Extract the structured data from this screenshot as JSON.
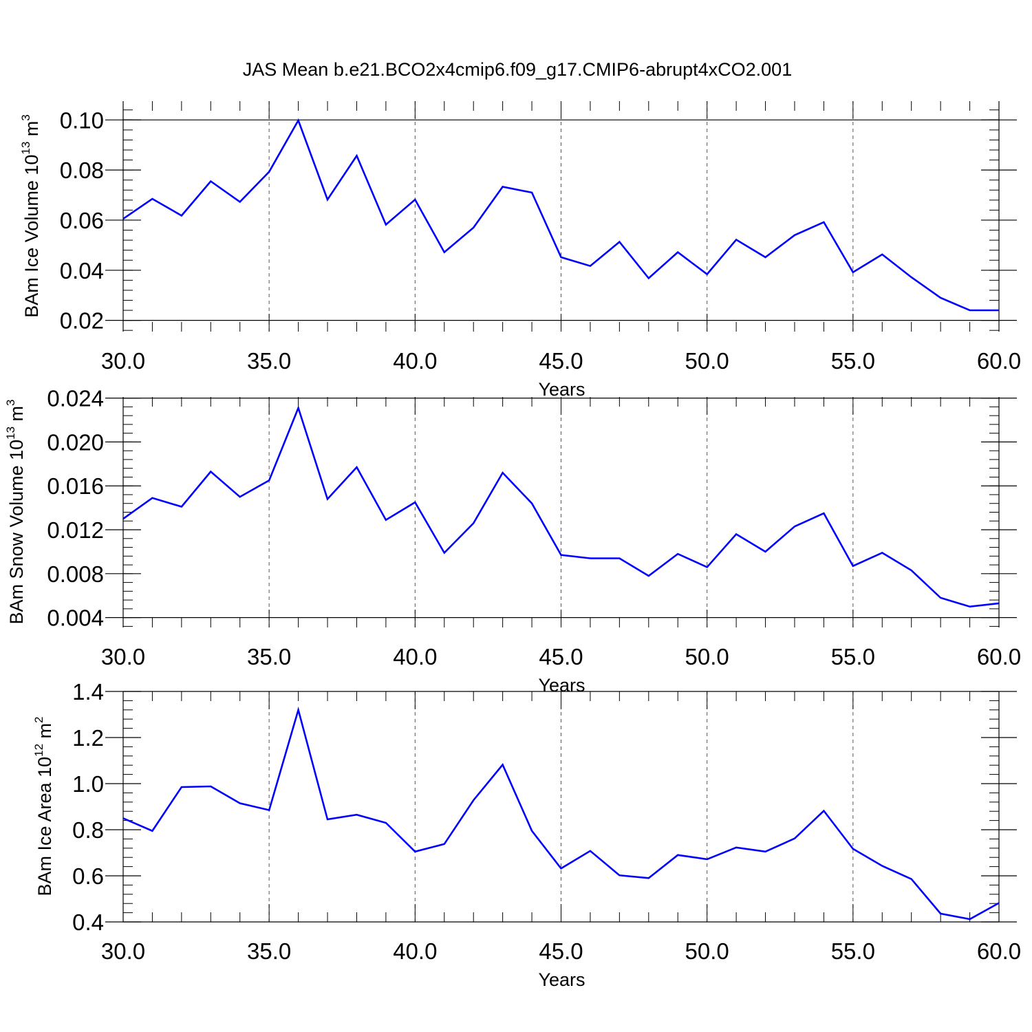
{
  "title": "JAS Mean b.e21.BCO2x4cmip6.f09_g17.CMIP6-abrupt4xCO2.001",
  "chart_data": [
    {
      "type": "line",
      "name": "ice-volume",
      "ylabel_main": "BAm Ice Volume 10",
      "ylabel_exp": "13",
      "ylabel_unit": " m",
      "ylabel_unit_exp": "3",
      "xlabel": "Years",
      "xlim": [
        30,
        60
      ],
      "ylim": [
        0.0155,
        0.1075
      ],
      "x_ticks": [
        30,
        35,
        40,
        45,
        50,
        55,
        60
      ],
      "x_tick_labels": [
        "30.0",
        "35.0",
        "40.0",
        "45.0",
        "50.0",
        "55.0",
        "60.0"
      ],
      "y_ticks": [
        0.02,
        0.04,
        0.06,
        0.08,
        0.1
      ],
      "y_tick_labels": [
        "0.02",
        "0.04",
        "0.06",
        "0.08",
        "0.10"
      ],
      "y_minor_step": 0.004,
      "x": [
        30,
        31,
        32,
        33,
        34,
        35,
        36,
        37,
        38,
        39,
        40,
        41,
        42,
        43,
        44,
        45,
        46,
        47,
        48,
        49,
        50,
        51,
        52,
        53,
        54,
        55,
        56,
        57,
        58,
        59,
        60
      ],
      "series": [
        {
          "name": "BAm Ice Volume",
          "color": "#0000ff",
          "values": [
            0.0605,
            0.0685,
            0.0618,
            0.0755,
            0.0673,
            0.0793,
            0.0998,
            0.0682,
            0.0857,
            0.0582,
            0.0682,
            0.0472,
            0.057,
            0.0733,
            0.071,
            0.0452,
            0.0417,
            0.0513,
            0.0368,
            0.0472,
            0.0384,
            0.0522,
            0.0452,
            0.054,
            0.0592,
            0.0392,
            0.0463,
            0.0372,
            0.029,
            0.024,
            0.024
          ]
        }
      ]
    },
    {
      "type": "line",
      "name": "snow-volume",
      "ylabel_main": "BAm Snow Volume 10",
      "ylabel_exp": "13",
      "ylabel_unit": " m",
      "ylabel_unit_exp": "3",
      "xlabel": "Years",
      "xlim": [
        30,
        60
      ],
      "ylim": [
        0.0031,
        0.0241
      ],
      "x_ticks": [
        30,
        35,
        40,
        45,
        50,
        55,
        60
      ],
      "x_tick_labels": [
        "30.0",
        "35.0",
        "40.0",
        "45.0",
        "50.0",
        "55.0",
        "60.0"
      ],
      "y_ticks": [
        0.004,
        0.008,
        0.012,
        0.016,
        0.02,
        0.024
      ],
      "y_tick_labels": [
        "0.004",
        "0.008",
        "0.012",
        "0.016",
        "0.020",
        "0.024"
      ],
      "y_minor_step": 0.0008,
      "x": [
        30,
        31,
        32,
        33,
        34,
        35,
        36,
        37,
        38,
        39,
        40,
        41,
        42,
        43,
        44,
        45,
        46,
        47,
        48,
        49,
        50,
        51,
        52,
        53,
        54,
        55,
        56,
        57,
        58,
        59,
        60
      ],
      "series": [
        {
          "name": "BAm Snow Volume",
          "color": "#0000ff",
          "values": [
            0.013,
            0.0149,
            0.0141,
            0.0173,
            0.015,
            0.0165,
            0.0231,
            0.0148,
            0.0177,
            0.0129,
            0.0145,
            0.0099,
            0.0126,
            0.0172,
            0.0144,
            0.0097,
            0.0094,
            0.0094,
            0.0078,
            0.0098,
            0.0086,
            0.0116,
            0.01,
            0.0123,
            0.0135,
            0.0087,
            0.0099,
            0.0083,
            0.0058,
            0.005,
            0.0053
          ]
        }
      ]
    },
    {
      "type": "line",
      "name": "ice-area",
      "ylabel_main": "BAm Ice Area 10",
      "ylabel_exp": "12",
      "ylabel_unit": " m",
      "ylabel_unit_exp": "2",
      "xlabel": "Years",
      "xlim": [
        30,
        60
      ],
      "ylim": [
        0.4,
        1.4
      ],
      "x_ticks": [
        30,
        35,
        40,
        45,
        50,
        55,
        60
      ],
      "x_tick_labels": [
        "30.0",
        "35.0",
        "40.0",
        "45.0",
        "50.0",
        "55.0",
        "60.0"
      ],
      "y_ticks": [
        0.4,
        0.6,
        0.8,
        1.0,
        1.2,
        1.4
      ],
      "y_tick_labels": [
        "0.4",
        "0.6",
        "0.8",
        "1.0",
        "1.2",
        "1.4"
      ],
      "y_minor_step": 0.04,
      "x": [
        30,
        31,
        32,
        33,
        34,
        35,
        36,
        37,
        38,
        39,
        40,
        41,
        42,
        43,
        44,
        45,
        46,
        47,
        48,
        49,
        50,
        51,
        52,
        53,
        54,
        55,
        56,
        57,
        58,
        59,
        60
      ],
      "series": [
        {
          "name": "BAm Ice Area",
          "color": "#0000ff",
          "values": [
            0.85,
            0.795,
            0.985,
            0.988,
            0.915,
            0.885,
            1.32,
            0.845,
            0.865,
            0.83,
            0.705,
            0.738,
            0.928,
            1.082,
            0.795,
            0.632,
            0.708,
            0.602,
            0.59,
            0.69,
            0.672,
            0.723,
            0.705,
            0.762,
            0.882,
            0.717,
            0.643,
            0.586,
            0.436,
            0.412,
            0.482
          ]
        }
      ]
    }
  ]
}
